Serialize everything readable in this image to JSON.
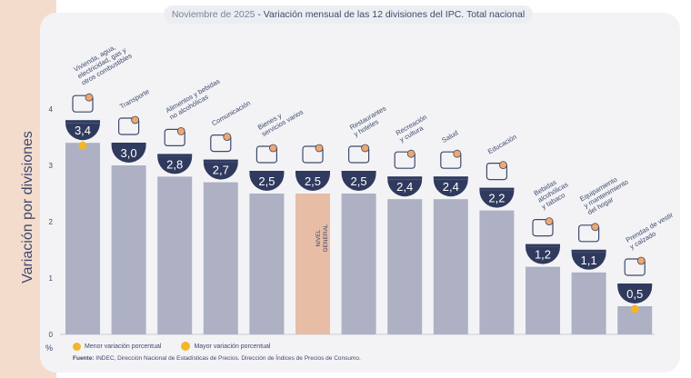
{
  "title": {
    "date": "Noviembre de 2025",
    "text": "Variación mensual de las 12 divisiones del IPC. Total nacional"
  },
  "legend": {
    "min_label": "Menor variación porcentual",
    "max_label": "Mayor variación porcentual"
  },
  "source": {
    "label": "Fuente:",
    "text": "INDEC, Dirección Nacional de Estadísticas de Precios. Dirección de Índices de Precios de Consumo."
  },
  "colors": {
    "bar": "#adb1c3",
    "general_bar": "#e8bda5",
    "bubble": "#2f3a5e",
    "accent": "#f3b52a",
    "text": "#3d4a6b"
  },
  "chart_data": {
    "type": "bar",
    "title": "Variación mensual de las 12 divisiones del IPC. Total nacional",
    "subtitle": "Noviembre de 2025",
    "xlabel": "",
    "ylabel": "Variación por divisiones",
    "y_unit": "%",
    "ylim": [
      0,
      4
    ],
    "yticks": [
      0,
      1,
      2,
      3,
      4
    ],
    "grid": false,
    "categories": [
      "Vivienda, agua, electricidad, gas y otros combustibles",
      "Transporte",
      "Alimentos y bebidas no alcohólicas",
      "Comunicación",
      "Bienes y servicios varios",
      "NIVEL GENERAL",
      "Restaurantes y hoteles",
      "Recreación y cultura",
      "Salud",
      "Educación",
      "Bebidas alcohólicas y tabaco",
      "Equipamiento y mantenimiento del hogar",
      "Prendas de vestir y calzado"
    ],
    "values": [
      3.4,
      3.0,
      2.8,
      2.7,
      2.5,
      2.5,
      2.5,
      2.4,
      2.4,
      2.2,
      1.2,
      1.1,
      0.5
    ],
    "value_labels": [
      "3,4",
      "3,0",
      "2,8",
      "2,7",
      "2,5",
      "2,5",
      "2,5",
      "2,4",
      "2,4",
      "2,2",
      "1,2",
      "1,1",
      "0,5"
    ],
    "category_label_lines": [
      [
        "Vivienda, agua,",
        "electricidad, gas y",
        "otros combustibles"
      ],
      [
        "Transporte"
      ],
      [
        "Alimentos y bebidas",
        "no alcohólicas"
      ],
      [
        "Comunicación"
      ],
      [
        "Bienes y",
        "servicios varios"
      ],
      [
        "NIVEL",
        "GENERAL"
      ],
      [
        "Restaurantes",
        "y hoteles"
      ],
      [
        "Recreación",
        "y cultura"
      ],
      [
        "Salud"
      ],
      [
        "Educación"
      ],
      [
        "Bebidas",
        "alcohólicas",
        "y tabaco"
      ],
      [
        "Equipamiento",
        "y mantenimiento",
        "del hogar"
      ],
      [
        "Prendas de vestir",
        "y calzado"
      ]
    ],
    "highlight_max": "Vivienda, agua, electricidad, gas y otros combustibles",
    "highlight_min": "Prendas de vestir y calzado",
    "icons": [
      "lightbulb-icon",
      "bus-icon",
      "groceries-icon",
      "phone-icon",
      "tools-icon",
      "general-basket-icon",
      "dining-icon",
      "leisure-icon",
      "health-icon",
      "education-icon",
      "drinks-icon",
      "home-appliance-icon",
      "clothing-icon"
    ]
  }
}
